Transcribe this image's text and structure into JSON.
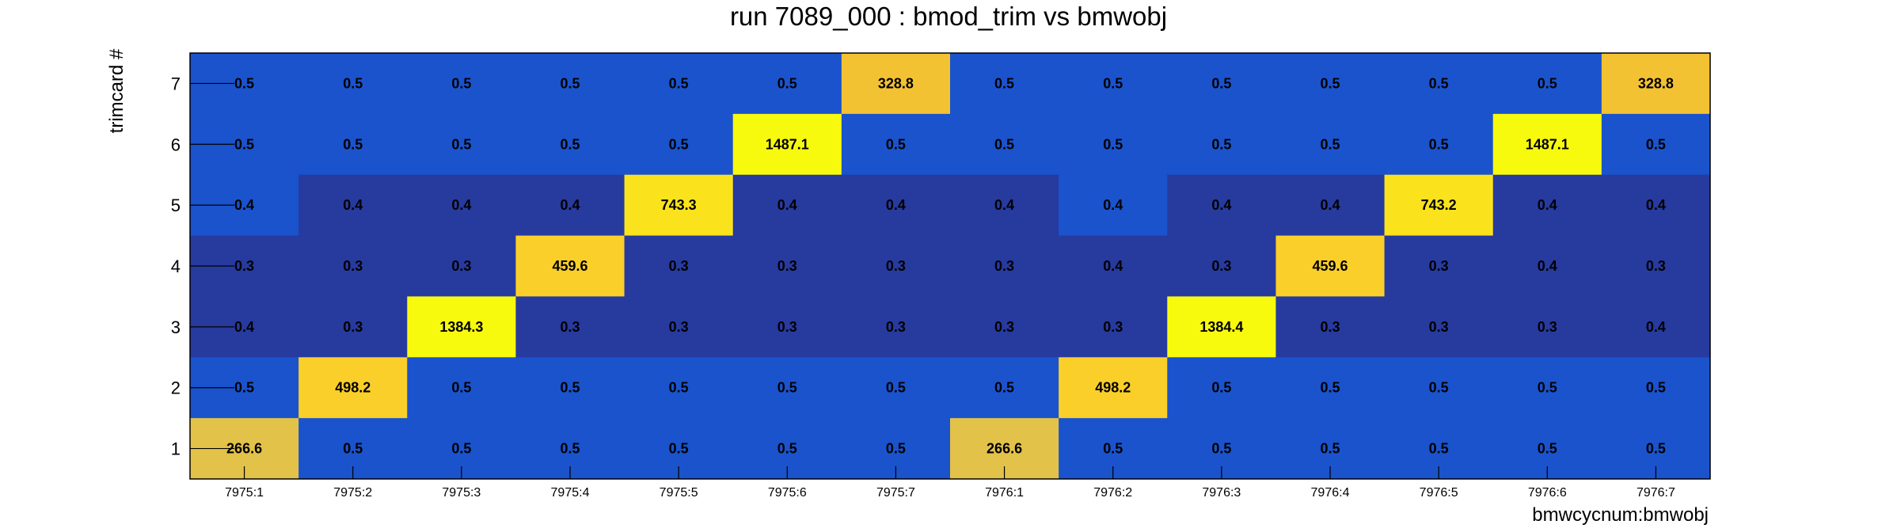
{
  "chart_data": {
    "type": "heatmap",
    "title": "run 7089_000 : bmod_trim vs bmwobj",
    "xlabel": "bmwcycnum:bmwobj",
    "ylabel": "trimcard #",
    "x_categories": [
      "7975:1",
      "7975:2",
      "7975:3",
      "7975:4",
      "7975:5",
      "7975:6",
      "7975:7",
      "7976:1",
      "7976:2",
      "7976:3",
      "7976:4",
      "7976:5",
      "7976:6",
      "7976:7"
    ],
    "y_categories": [
      "7",
      "6",
      "5",
      "4",
      "3",
      "2",
      "1"
    ],
    "values": [
      [
        0.5,
        0.5,
        0.5,
        0.5,
        0.5,
        0.5,
        328.8,
        0.5,
        0.5,
        0.5,
        0.5,
        0.5,
        0.5,
        328.8
      ],
      [
        0.5,
        0.5,
        0.5,
        0.5,
        0.5,
        1487.1,
        0.5,
        0.5,
        0.5,
        0.5,
        0.5,
        0.5,
        1487.1,
        0.5
      ],
      [
        0.4,
        0.4,
        0.4,
        0.4,
        743.3,
        0.4,
        0.4,
        0.4,
        0.4,
        0.4,
        0.4,
        743.2,
        0.4,
        0.4
      ],
      [
        0.3,
        0.3,
        0.3,
        459.6,
        0.3,
        0.3,
        0.3,
        0.3,
        0.4,
        0.3,
        459.6,
        0.3,
        0.4,
        0.3
      ],
      [
        0.4,
        0.3,
        1384.3,
        0.3,
        0.3,
        0.3,
        0.3,
        0.3,
        0.3,
        1384.4,
        0.3,
        0.3,
        0.3,
        0.4
      ],
      [
        0.5,
        498.2,
        0.5,
        0.5,
        0.5,
        0.5,
        0.5,
        0.5,
        498.2,
        0.5,
        0.5,
        0.5,
        0.5,
        0.5
      ],
      [
        266.6,
        0.5,
        0.5,
        0.5,
        0.5,
        0.5,
        0.5,
        266.6,
        0.5,
        0.5,
        0.5,
        0.5,
        0.5,
        0.5
      ]
    ],
    "colors": {
      "low_dark": "#273a9e",
      "low": "#1a53cc",
      "high_gold": "#e3c24a",
      "high_orange": "#f3c233",
      "high_amber": "#facf2a",
      "high_yellow": "#fae31c",
      "max_yellow": "#f8fa0d"
    }
  }
}
